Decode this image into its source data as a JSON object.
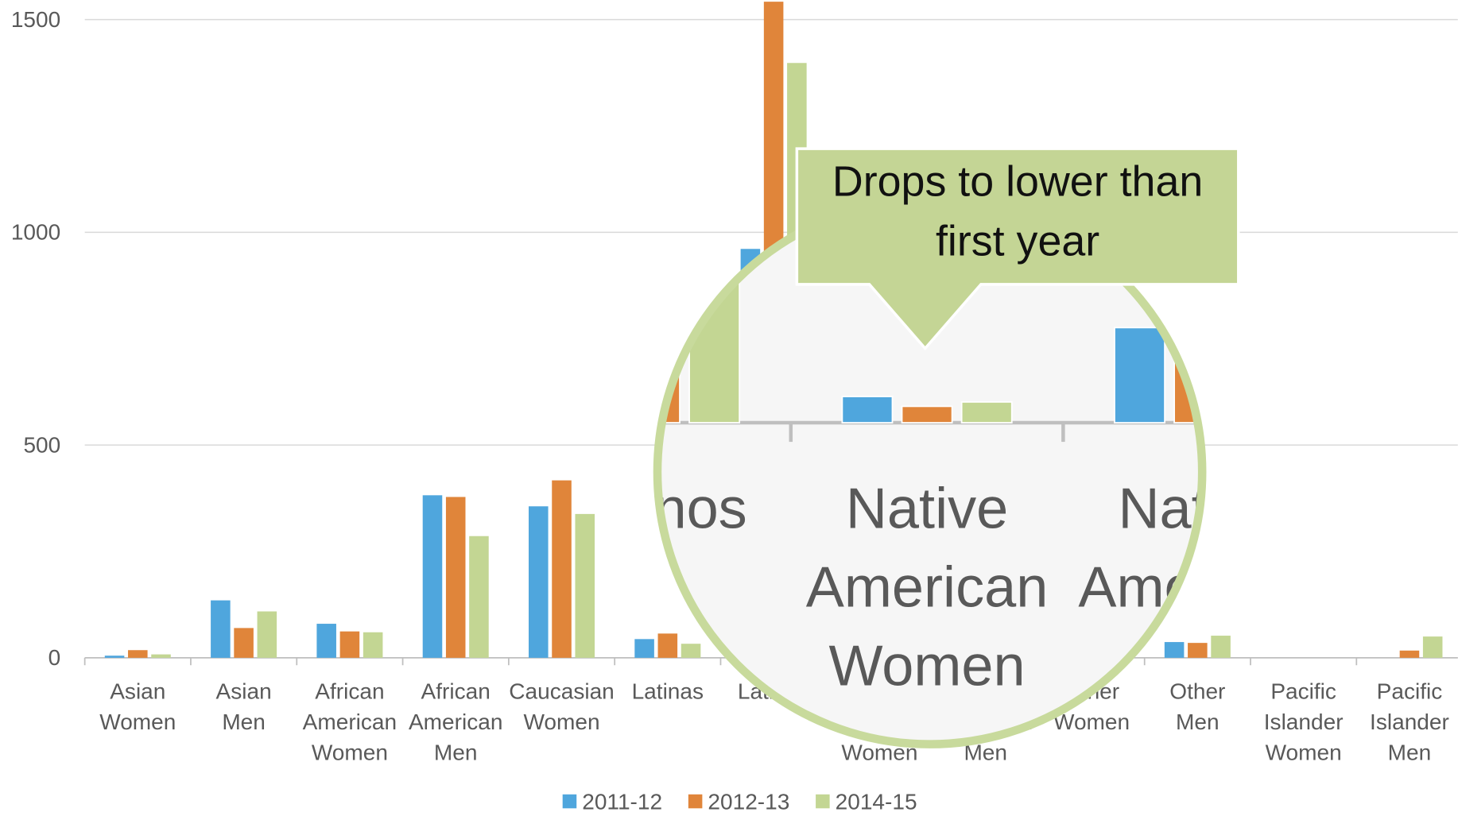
{
  "chart_data": {
    "type": "bar",
    "categories": [
      "Asian Women",
      "Asian Men",
      "African American Women",
      "African American Men",
      "Caucasian Women",
      "Latinas",
      "Latinos",
      "Native American Women",
      "Native American Men",
      "Other Women",
      "Other Men",
      "Pacific Islander Women",
      "Pacific Islander Men"
    ],
    "series": [
      {
        "name": "2011-12",
        "color": "#4fa6dd",
        "values": [
          5,
          135,
          80,
          382,
          356,
          44,
          961,
          24,
          87,
          30,
          37,
          0,
          0
        ]
      },
      {
        "name": "2012-13",
        "color": "#e0853a",
        "values": [
          18,
          70,
          62,
          378,
          417,
          57,
          1542,
          15,
          70,
          25,
          35,
          0,
          17
        ]
      },
      {
        "name": "2014-15",
        "color": "#c3d693",
        "values": [
          8,
          109,
          60,
          286,
          338,
          33,
          1398,
          19,
          50,
          35,
          52,
          0,
          50
        ]
      }
    ],
    "ylim": [
      0,
      1546
    ],
    "yticks": [
      0,
      500,
      1000,
      1500
    ],
    "grid": true,
    "legend": "bottom",
    "annotation": "Drops to lower than first year"
  }
}
